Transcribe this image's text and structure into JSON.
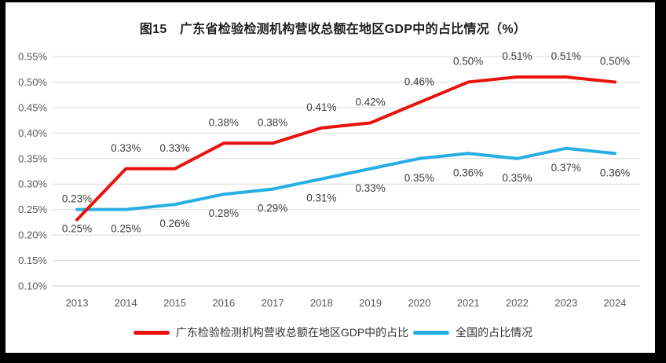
{
  "title": "图15　广东省检验检测机构营收总额在地区GDP中的占比情况（%）",
  "colors": {
    "guangdong_red": "#e8130c",
    "national_blue": "#27aee4",
    "gridline": "#d9d9d9",
    "axis_line": "#c6c6c6",
    "axis_text": "#595959",
    "label_text": "#3b3b3b",
    "frame": "#000000",
    "background": "#ffffff"
  },
  "chart_data": {
    "type": "line",
    "title": "图15　广东省检验检测机构营收总额在地区GDP中的占比情况（%）",
    "categories": [
      "2013",
      "2014",
      "2015",
      "2016",
      "2017",
      "2018",
      "2019",
      "2020",
      "2021",
      "2022",
      "2023",
      "2024"
    ],
    "series": [
      {
        "name": "广东检验检测机构营收总额在地区GDP中的占比",
        "color": "#e8130c",
        "values": [
          0.23,
          0.33,
          0.33,
          0.38,
          0.38,
          0.41,
          0.42,
          0.46,
          0.5,
          0.51,
          0.51,
          0.5
        ],
        "labels": [
          "0.23%",
          "0.33%",
          "0.33%",
          "0.38%",
          "0.38%",
          "0.41%",
          "0.42%",
          "0.46%",
          "0.50%",
          "0.51%",
          "0.51%",
          "0.50%"
        ],
        "label_position": "above"
      },
      {
        "name": "全国的占比情况",
        "color": "#27aee4",
        "values": [
          0.25,
          0.25,
          0.26,
          0.28,
          0.29,
          0.31,
          0.33,
          0.35,
          0.36,
          0.35,
          0.37,
          0.36
        ],
        "labels": [
          "0.25%",
          "0.25%",
          "0.26%",
          "0.28%",
          "0.29%",
          "0.31%",
          "0.33%",
          "0.35%",
          "0.36%",
          "0.35%",
          "0.37%",
          "0.36%"
        ],
        "label_position": "below"
      }
    ],
    "xlabel": "",
    "ylabel": "",
    "ylim": [
      0.1,
      0.55
    ],
    "ytick_step": 0.05,
    "yticks": [
      "0.55%",
      "0.50%",
      "0.45%",
      "0.40%",
      "0.35%",
      "0.30%",
      "0.25%",
      "0.20%",
      "0.15%",
      "0.10%"
    ],
    "grid": "horizontal",
    "legend_position": "bottom"
  },
  "legend": {
    "items": [
      {
        "label": "广东检验检测机构营收总额在地区GDP中的占比",
        "color": "#e8130c"
      },
      {
        "label": "全国的占比情况",
        "color": "#27aee4"
      }
    ]
  }
}
